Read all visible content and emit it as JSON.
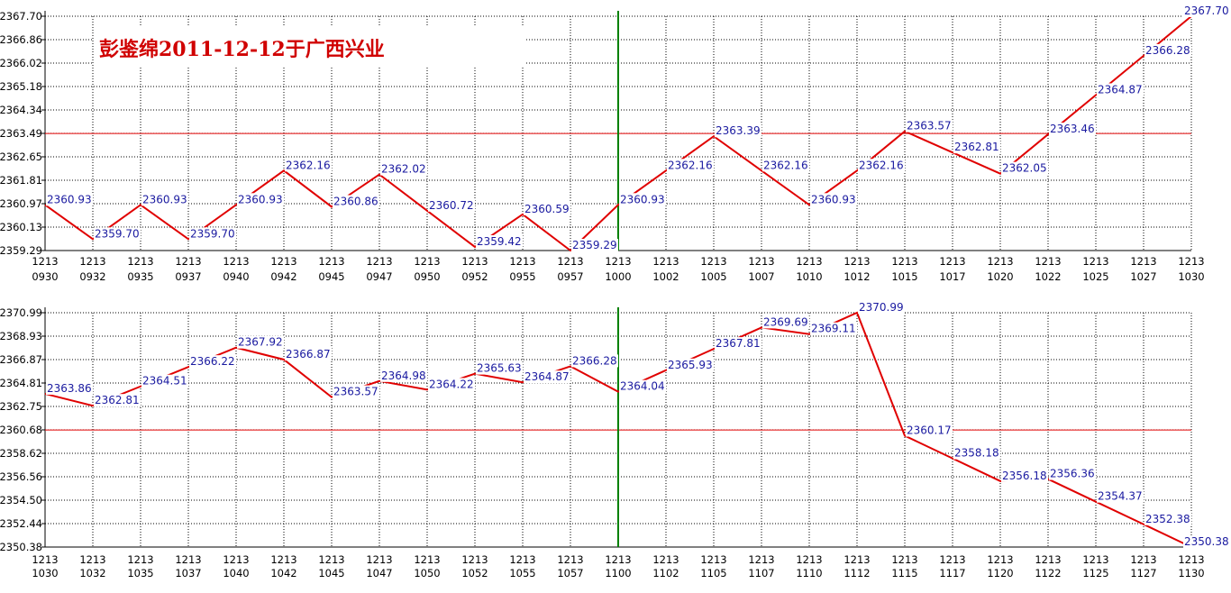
{
  "title": "彭鉴绵2011-12-12于广西兴业",
  "colors": {
    "line": "#e00000",
    "labels": "#1a1aa0",
    "grid": "#000000",
    "reference": "#e00000",
    "divider": "#008000",
    "title": "#d00000"
  },
  "chart_data": [
    {
      "type": "line",
      "grid": true,
      "grid_style": "dotted",
      "ylim": [
        2359.29,
        2367.7
      ],
      "yticks": [
        "2367.70",
        "2366.86",
        "2366.02",
        "2365.18",
        "2364.34",
        "2363.49",
        "2362.65",
        "2361.81",
        "2360.97",
        "2360.13",
        "2359.29"
      ],
      "reference_line": 2363.49,
      "divider_at": "1000",
      "x": [
        "0930",
        "0932",
        "0935",
        "0937",
        "0940",
        "0942",
        "0945",
        "0947",
        "0950",
        "0952",
        "0955",
        "0957",
        "1000",
        "1002",
        "1005",
        "1007",
        "1010",
        "1012",
        "1015",
        "1017",
        "1020",
        "1022",
        "1025",
        "1027",
        "1030"
      ],
      "x_prefix": "1213",
      "values": [
        2360.93,
        2359.7,
        2360.93,
        2359.7,
        2360.93,
        2362.16,
        2360.86,
        2362.02,
        2360.72,
        2359.42,
        2360.59,
        2359.29,
        2360.93,
        2362.16,
        2363.39,
        2362.16,
        2360.93,
        2362.16,
        2363.57,
        2362.81,
        2362.05,
        2363.46,
        2364.87,
        2366.28,
        2367.7
      ],
      "labels": [
        "2360.93",
        "2359.70",
        "2360.93",
        "2359.70",
        "2360.93",
        "2362.16",
        "2360.86",
        "2362.02",
        "2360.72",
        "2359.42",
        "2360.59",
        "2359.29",
        "2360.93",
        "2362.16",
        "2363.39",
        "2362.16",
        "2360.93",
        "2362.16",
        "2363.57",
        "2362.81",
        "2362.05",
        "2363.46",
        "2364.87",
        "2366.28",
        "2367.70"
      ]
    },
    {
      "type": "line",
      "grid": true,
      "grid_style": "dotted",
      "ylim": [
        2350.38,
        2370.99
      ],
      "yticks": [
        "2370.99",
        "2368.93",
        "2366.87",
        "2364.81",
        "2362.75",
        "2360.68",
        "2358.62",
        "2356.56",
        "2354.50",
        "2352.44",
        "2350.38"
      ],
      "reference_line": 2360.68,
      "divider_at": "1100",
      "x": [
        "1030",
        "1032",
        "1035",
        "1037",
        "1040",
        "1042",
        "1045",
        "1047",
        "1050",
        "1052",
        "1055",
        "1057",
        "1100",
        "1102",
        "1105",
        "1107",
        "1110",
        "1112",
        "1115",
        "1117",
        "1120",
        "1122",
        "1125",
        "1127",
        "1130"
      ],
      "x_prefix": "1213",
      "values": [
        2363.86,
        2362.81,
        2364.51,
        2366.22,
        2367.92,
        2366.87,
        2363.57,
        2364.98,
        2364.22,
        2365.63,
        2364.87,
        2366.28,
        2364.04,
        2365.93,
        2367.81,
        2369.69,
        2369.11,
        2370.99,
        2360.17,
        2358.18,
        2356.18,
        2356.36,
        2354.37,
        2352.38,
        2350.38
      ],
      "labels": [
        "2363.86",
        "2362.81",
        "2364.51",
        "2366.22",
        "2367.92",
        "2366.87",
        "2363.57",
        "2364.98",
        "2364.22",
        "2365.63",
        "2364.87",
        "2366.28",
        "2364.04",
        "2365.93",
        "2367.81",
        "2369.69",
        "2369.11",
        "2370.99",
        "2360.17",
        "2358.18",
        "2356.18",
        "2356.36",
        "2354.37",
        "2352.38",
        "2350.38"
      ]
    }
  ]
}
